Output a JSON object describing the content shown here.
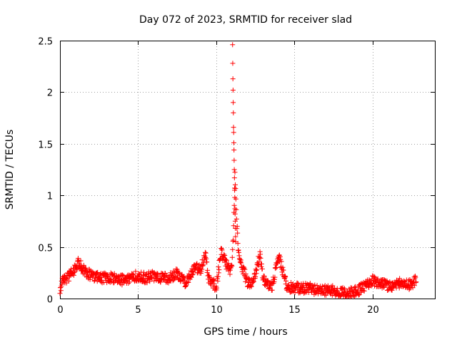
{
  "chart_data": {
    "type": "scatter",
    "title": "Day 072 of 2023, SRMTID for receiver slad",
    "xlabel": "GPS time / hours",
    "ylabel": "SRMTID / TECUs",
    "xlim": [
      0,
      24
    ],
    "ylim": [
      0,
      2.5
    ],
    "xticks": [
      0,
      5,
      10,
      15,
      20
    ],
    "xtick_labels": [
      "0",
      "5",
      "10",
      "15",
      "20"
    ],
    "yticks": [
      0,
      0.5,
      1,
      1.5,
      2,
      2.5
    ],
    "ytick_labels": [
      "0",
      "0.5",
      "1",
      "1.5",
      "2",
      "2.5"
    ],
    "grid": true,
    "marker": "+",
    "color": "#ff0000",
    "series": [
      {
        "name": "SRMTID",
        "profile_x": [
          0.0,
          0.2,
          0.5,
          0.8,
          1.0,
          1.2,
          1.5,
          2.0,
          2.5,
          3.0,
          3.5,
          4.0,
          4.5,
          5.0,
          5.5,
          6.0,
          6.5,
          7.0,
          7.5,
          8.0,
          8.3,
          8.6,
          9.0,
          9.3,
          9.5,
          9.8,
          10.0,
          10.3,
          10.6,
          10.9,
          11.0,
          11.1,
          11.2,
          11.3,
          11.4,
          11.5,
          11.8,
          12.0,
          12.3,
          12.6,
          12.8,
          13.0,
          13.3,
          13.6,
          14.0,
          14.2,
          14.5,
          15.0,
          15.5,
          16.0,
          16.5,
          17.0,
          17.5,
          18.0,
          18.5,
          19.0,
          19.5,
          20.0,
          20.5,
          21.0,
          21.5,
          22.0,
          22.5,
          22.8
        ],
        "profile_y": [
          0.1,
          0.18,
          0.2,
          0.25,
          0.3,
          0.35,
          0.28,
          0.22,
          0.2,
          0.2,
          0.2,
          0.18,
          0.2,
          0.22,
          0.2,
          0.22,
          0.2,
          0.2,
          0.25,
          0.15,
          0.22,
          0.3,
          0.28,
          0.45,
          0.2,
          0.15,
          0.1,
          0.45,
          0.35,
          0.25,
          0.3,
          0.6,
          1.2,
          0.8,
          0.5,
          0.38,
          0.25,
          0.15,
          0.15,
          0.3,
          0.42,
          0.2,
          0.15,
          0.12,
          0.42,
          0.3,
          0.12,
          0.1,
          0.1,
          0.1,
          0.08,
          0.08,
          0.08,
          0.06,
          0.05,
          0.07,
          0.12,
          0.18,
          0.15,
          0.12,
          0.14,
          0.15,
          0.13,
          0.18
        ],
        "noise_amplitude": 0.05,
        "count": 1080,
        "spike_x": [
          11.05,
          11.06,
          11.07,
          11.08,
          11.09,
          11.1,
          11.11,
          11.12,
          11.13,
          11.14,
          11.15,
          11.16,
          11.17,
          11.18,
          11.19,
          11.2,
          11.21,
          11.22,
          11.23,
          11.24,
          11.25
        ],
        "spike_y": [
          2.46,
          2.28,
          2.13,
          2.02,
          1.9,
          1.8,
          1.66,
          1.61,
          1.51,
          1.44,
          1.34,
          1.25,
          1.17,
          1.05,
          0.98,
          0.87,
          0.82,
          0.75,
          0.68,
          0.6,
          0.55
        ]
      }
    ]
  }
}
